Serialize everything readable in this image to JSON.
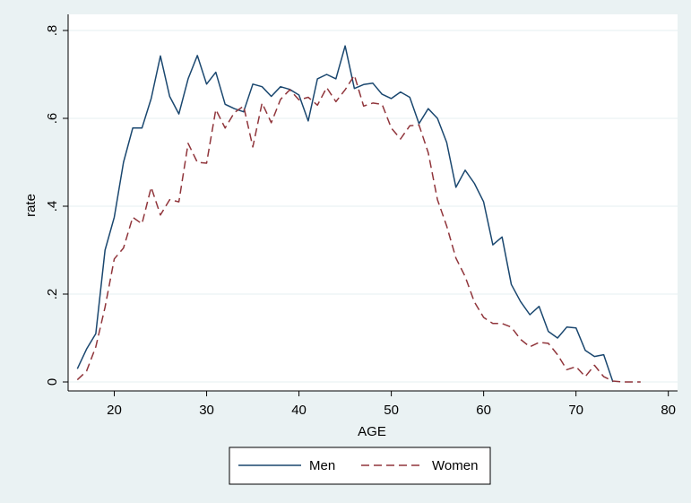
{
  "chart_data": {
    "type": "line",
    "xlabel": "AGE",
    "ylabel": "rate",
    "xlim": [
      15,
      81
    ],
    "ylim": [
      0,
      0.8
    ],
    "x_ticks": [
      20,
      30,
      40,
      50,
      60,
      70,
      80
    ],
    "x_tick_labels": [
      "20",
      "30",
      "40",
      "50",
      "60",
      "70",
      "80"
    ],
    "y_ticks": [
      0,
      0.2,
      0.4,
      0.6,
      0.8
    ],
    "y_tick_labels": [
      "0",
      ".2",
      ".4",
      ".6",
      ".8"
    ],
    "grid": true,
    "legend_position": "bottom",
    "series": [
      {
        "name": "Men",
        "color": "#1a476f",
        "dash": "solid",
        "x": [
          16,
          17,
          18,
          19,
          20,
          21,
          22,
          23,
          24,
          25,
          26,
          27,
          28,
          29,
          30,
          31,
          32,
          33,
          34,
          35,
          36,
          37,
          38,
          39,
          40,
          41,
          42,
          43,
          44,
          45,
          46,
          47,
          48,
          49,
          50,
          51,
          52,
          53,
          54,
          55,
          56,
          57,
          58,
          59,
          60,
          61,
          62,
          63,
          64,
          65,
          66,
          67,
          68,
          69,
          70,
          71,
          72,
          73,
          74
        ],
        "y": [
          0.03,
          0.075,
          0.11,
          0.3,
          0.375,
          0.5,
          0.578,
          0.578,
          0.645,
          0.742,
          0.65,
          0.61,
          0.69,
          0.743,
          0.678,
          0.705,
          0.632,
          0.622,
          0.615,
          0.678,
          0.672,
          0.65,
          0.672,
          0.666,
          0.653,
          0.594,
          0.69,
          0.7,
          0.69,
          0.765,
          0.668,
          0.677,
          0.68,
          0.655,
          0.645,
          0.66,
          0.648,
          0.588,
          0.622,
          0.6,
          0.545,
          0.443,
          0.482,
          0.452,
          0.41,
          0.312,
          0.33,
          0.222,
          0.183,
          0.153,
          0.172,
          0.115,
          0.1,
          0.125,
          0.123,
          0.072,
          0.058,
          0.062,
          0.0
        ]
      },
      {
        "name": "Women",
        "color": "#90353b",
        "dash": "dashed",
        "x": [
          16,
          17,
          18,
          19,
          20,
          21,
          22,
          23,
          24,
          25,
          26,
          27,
          28,
          29,
          30,
          31,
          32,
          33,
          34,
          35,
          36,
          37,
          38,
          39,
          40,
          41,
          42,
          43,
          44,
          45,
          46,
          47,
          48,
          49,
          50,
          51,
          52,
          53,
          54,
          55,
          56,
          57,
          58,
          59,
          60,
          61,
          62,
          63,
          64,
          65,
          66,
          67,
          68,
          69,
          70,
          71,
          72,
          73,
          74,
          75,
          76,
          77
        ],
        "y": [
          0.005,
          0.025,
          0.08,
          0.17,
          0.28,
          0.305,
          0.375,
          0.36,
          0.443,
          0.38,
          0.415,
          0.41,
          0.543,
          0.5,
          0.498,
          0.62,
          0.578,
          0.613,
          0.628,
          0.535,
          0.635,
          0.59,
          0.643,
          0.665,
          0.642,
          0.648,
          0.63,
          0.67,
          0.638,
          0.665,
          0.698,
          0.628,
          0.635,
          0.632,
          0.578,
          0.553,
          0.583,
          0.585,
          0.522,
          0.415,
          0.355,
          0.282,
          0.24,
          0.182,
          0.147,
          0.133,
          0.133,
          0.125,
          0.097,
          0.08,
          0.09,
          0.088,
          0.062,
          0.028,
          0.035,
          0.012,
          0.038,
          0.012,
          0.002,
          0.0,
          0.0,
          0.0
        ]
      }
    ]
  },
  "colors": {
    "background": "#eaf2f3",
    "plot_area": "#ffffff",
    "gridline": "#eaf2f3",
    "axis": "#000000"
  }
}
